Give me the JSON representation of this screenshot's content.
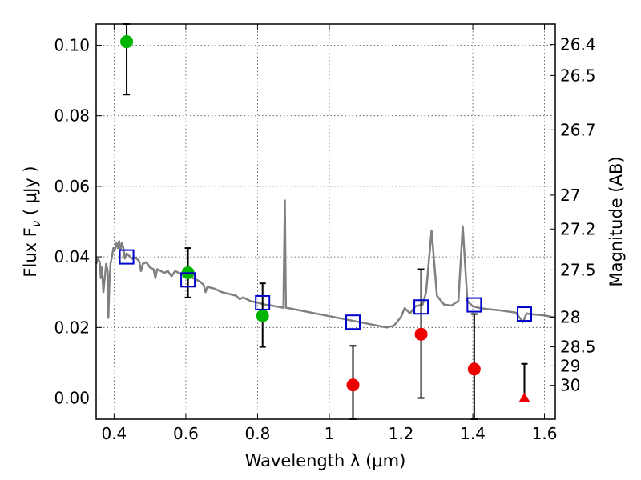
{
  "chart_data": {
    "type": "scatter",
    "xlabel": "Wavelength  λ (μm)",
    "ylabel": "Flux  F",
    "ylabel_subscript": "ν",
    "ylabel_unit": "  ( μJy )",
    "y2label": "Magnitude (AB)",
    "xlim": [
      0.35,
      1.63
    ],
    "ylim": [
      -0.006,
      0.106
    ],
    "x_ticks": [
      0.4,
      0.6,
      0.8,
      1.0,
      1.2,
      1.4,
      1.6
    ],
    "x_tick_labels": [
      "0.4",
      "0.6",
      "0.8",
      "1",
      "1.2",
      "1.4",
      "1.6"
    ],
    "y_ticks": [
      0.0,
      0.02,
      0.04,
      0.06,
      0.08,
      0.1
    ],
    "y_tick_labels": [
      "0.00",
      "0.02",
      "0.04",
      "0.06",
      "0.08",
      "0.10"
    ],
    "y2_ticks": [
      {
        "label": "26.4",
        "flux": 0.1002
      },
      {
        "label": "26.5",
        "flux": 0.0914
      },
      {
        "label": "26.7",
        "flux": 0.076
      },
      {
        "label": "27",
        "flux": 0.0575
      },
      {
        "label": "27.2",
        "flux": 0.0479
      },
      {
        "label": "27.5",
        "flux": 0.0363
      },
      {
        "label": "28",
        "flux": 0.0229
      },
      {
        "label": "28.5",
        "flux": 0.0145
      },
      {
        "label": "29",
        "flux": 0.0091
      },
      {
        "label": "30",
        "flux": 0.0036
      }
    ],
    "grid": true,
    "colors": {
      "spectrum": "#808080",
      "green": "#00b400",
      "red": "#ee0000",
      "blue": "#0000cc"
    },
    "series": [
      {
        "marker": "circle",
        "color": "#00b400",
        "points": [
          {
            "x": 0.435,
            "y": 0.101,
            "err_lo": 0.086,
            "err_hi": 0.106
          },
          {
            "x": 0.606,
            "y": 0.0355,
            "err_lo": 0.0285,
            "err_hi": 0.0425
          },
          {
            "x": 0.814,
            "y": 0.0233,
            "err_lo": 0.0145,
            "err_hi": 0.0325
          }
        ]
      },
      {
        "marker": "circle",
        "color": "#ee0000",
        "points": [
          {
            "x": 1.066,
            "y": 0.0037,
            "err_lo": -0.006,
            "err_hi": 0.0148
          },
          {
            "x": 1.256,
            "y": 0.0181,
            "err_lo": 0.0,
            "err_hi": 0.0365
          },
          {
            "x": 1.404,
            "y": 0.0082,
            "err_lo": -0.006,
            "err_hi": 0.0238
          }
        ]
      },
      {
        "marker": "triangle",
        "color": "#ee0000",
        "points": [
          {
            "x": 1.544,
            "y": 0.0,
            "err_lo": 0.0,
            "err_hi": 0.0097
          }
        ]
      },
      {
        "marker": "square-open",
        "color": "#0000cc",
        "points": [
          {
            "x": 0.435,
            "y": 0.04
          },
          {
            "x": 0.606,
            "y": 0.0335
          },
          {
            "x": 0.814,
            "y": 0.027
          },
          {
            "x": 1.066,
            "y": 0.0215
          },
          {
            "x": 1.256,
            "y": 0.0258
          },
          {
            "x": 1.404,
            "y": 0.0264
          },
          {
            "x": 1.544,
            "y": 0.0238
          }
        ]
      },
      {
        "marker": "line",
        "color": "#808080",
        "points": [
          [
            0.35,
            0.038
          ],
          [
            0.355,
            0.0395
          ],
          [
            0.36,
            0.0385
          ],
          [
            0.363,
            0.034
          ],
          [
            0.366,
            0.037
          ],
          [
            0.37,
            0.03
          ],
          [
            0.374,
            0.034
          ],
          [
            0.378,
            0.038
          ],
          [
            0.382,
            0.036
          ],
          [
            0.384,
            0.0227
          ],
          [
            0.387,
            0.033
          ],
          [
            0.39,
            0.038
          ],
          [
            0.394,
            0.04
          ],
          [
            0.398,
            0.0425
          ],
          [
            0.402,
            0.042
          ],
          [
            0.406,
            0.044
          ],
          [
            0.41,
            0.0425
          ],
          [
            0.414,
            0.0445
          ],
          [
            0.418,
            0.042
          ],
          [
            0.422,
            0.044
          ],
          [
            0.426,
            0.0425
          ],
          [
            0.43,
            0.0395
          ],
          [
            0.435,
            0.041
          ],
          [
            0.44,
            0.0405
          ],
          [
            0.45,
            0.0395
          ],
          [
            0.46,
            0.0398
          ],
          [
            0.47,
            0.0388
          ],
          [
            0.475,
            0.036
          ],
          [
            0.48,
            0.038
          ],
          [
            0.49,
            0.0385
          ],
          [
            0.5,
            0.037
          ],
          [
            0.51,
            0.0365
          ],
          [
            0.515,
            0.034
          ],
          [
            0.52,
            0.0365
          ],
          [
            0.53,
            0.036
          ],
          [
            0.54,
            0.0355
          ],
          [
            0.55,
            0.036
          ],
          [
            0.56,
            0.0345
          ],
          [
            0.57,
            0.036
          ],
          [
            0.58,
            0.0355
          ],
          [
            0.59,
            0.035
          ],
          [
            0.6,
            0.0345
          ],
          [
            0.61,
            0.0348
          ],
          [
            0.62,
            0.034
          ],
          [
            0.63,
            0.0335
          ],
          [
            0.64,
            0.033
          ],
          [
            0.65,
            0.032
          ],
          [
            0.655,
            0.03
          ],
          [
            0.66,
            0.0315
          ],
          [
            0.68,
            0.031
          ],
          [
            0.7,
            0.03
          ],
          [
            0.72,
            0.0295
          ],
          [
            0.74,
            0.029
          ],
          [
            0.75,
            0.028
          ],
          [
            0.76,
            0.0285
          ],
          [
            0.78,
            0.0275
          ],
          [
            0.8,
            0.027
          ],
          [
            0.82,
            0.0265
          ],
          [
            0.84,
            0.0262
          ],
          [
            0.86,
            0.0258
          ],
          [
            0.872,
            0.0256
          ],
          [
            0.876,
            0.056
          ],
          [
            0.879,
            0.0256
          ],
          [
            0.89,
            0.0254
          ],
          [
            0.9,
            0.0252
          ],
          [
            0.92,
            0.0248
          ],
          [
            0.94,
            0.0244
          ],
          [
            0.96,
            0.024
          ],
          [
            0.98,
            0.0236
          ],
          [
            1.0,
            0.0232
          ],
          [
            1.02,
            0.0228
          ],
          [
            1.04,
            0.0224
          ],
          [
            1.06,
            0.022
          ],
          [
            1.08,
            0.0216
          ],
          [
            1.1,
            0.0212
          ],
          [
            1.12,
            0.0208
          ],
          [
            1.14,
            0.0204
          ],
          [
            1.16,
            0.02
          ],
          [
            1.18,
            0.0205
          ],
          [
            1.2,
            0.023
          ],
          [
            1.21,
            0.0255
          ],
          [
            1.225,
            0.024
          ],
          [
            1.24,
            0.026
          ],
          [
            1.26,
            0.0265
          ],
          [
            1.27,
            0.03
          ],
          [
            1.285,
            0.0475
          ],
          [
            1.3,
            0.029
          ],
          [
            1.32,
            0.0265
          ],
          [
            1.34,
            0.0262
          ],
          [
            1.36,
            0.0275
          ],
          [
            1.372,
            0.0487
          ],
          [
            1.385,
            0.0275
          ],
          [
            1.4,
            0.026
          ],
          [
            1.42,
            0.0255
          ],
          [
            1.44,
            0.0252
          ],
          [
            1.46,
            0.025
          ],
          [
            1.48,
            0.0248
          ],
          [
            1.5,
            0.0245
          ],
          [
            1.52,
            0.0242
          ],
          [
            1.54,
            0.0215
          ],
          [
            1.55,
            0.024
          ],
          [
            1.56,
            0.0238
          ],
          [
            1.58,
            0.0236
          ],
          [
            1.6,
            0.0234
          ],
          [
            1.63,
            0.0228
          ]
        ]
      }
    ]
  }
}
